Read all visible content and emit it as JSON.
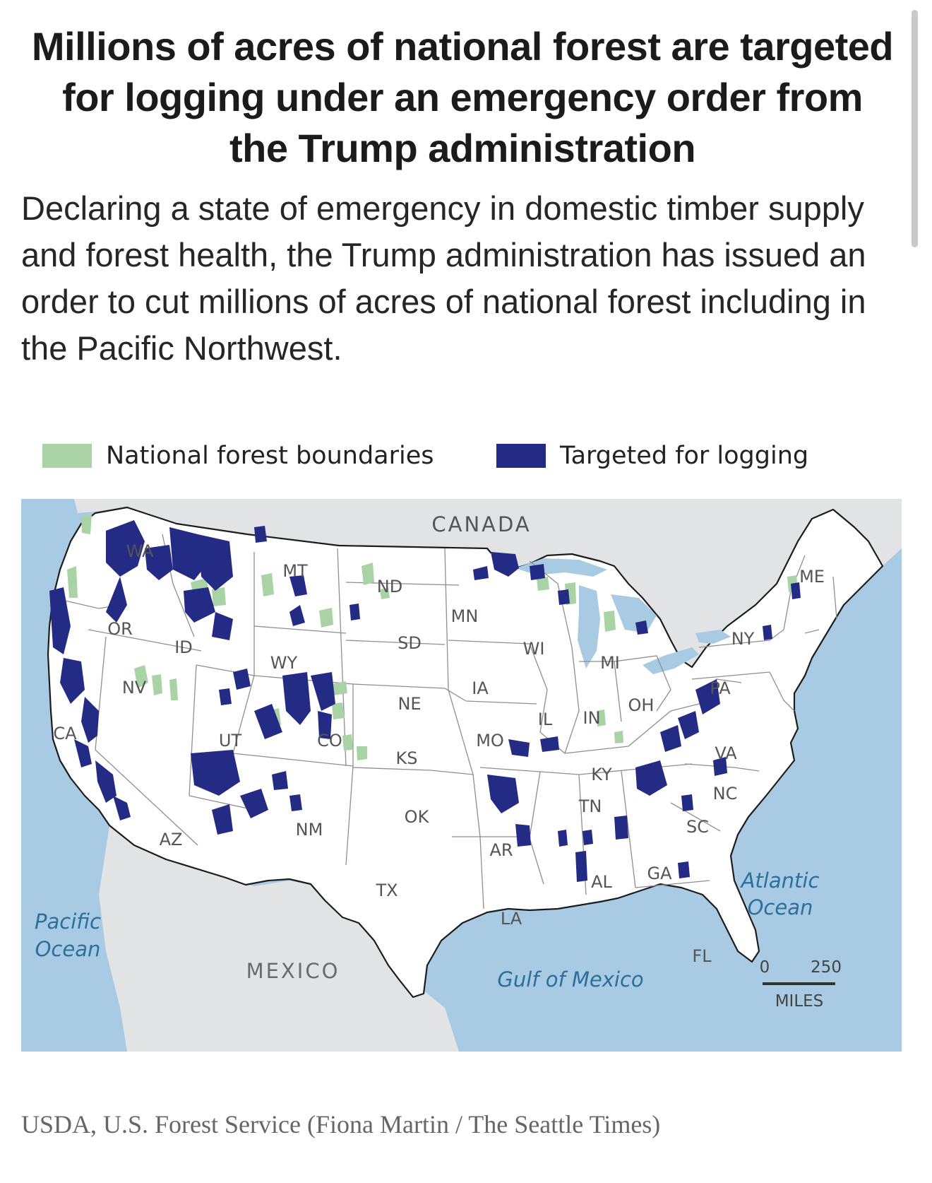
{
  "headline": "Millions of acres of national forest are targeted for logging under an emergency order from the Trump administration",
  "dek": "Declaring a state of emergency in domestic timber supply and forest health, the Trump administration has issued an order to cut millions of acres of national forest including in the Pacific Northwest.",
  "legend": {
    "boundaries_label": "National forest boundaries",
    "logging_label": "Targeted for logging"
  },
  "colors": {
    "boundaries": "#a9d3a4",
    "logging": "#232b84",
    "water": "#a8cbe3",
    "land": "#ffffff",
    "foreign_land": "#e1e3e5"
  },
  "map": {
    "country_labels": {
      "canada": "CANADA",
      "mexico": "MEXICO"
    },
    "water_labels": {
      "pacific_1": "Pacific",
      "pacific_2": "Ocean",
      "atlantic_1": "Atlantic",
      "atlantic_2": "Ocean",
      "gulf": "Gulf of Mexico"
    },
    "state_labels": [
      "WA",
      "OR",
      "CA",
      "NV",
      "ID",
      "MT",
      "WY",
      "UT",
      "AZ",
      "CO",
      "NM",
      "ND",
      "SD",
      "NE",
      "KS",
      "OK",
      "TX",
      "MN",
      "IA",
      "MO",
      "AR",
      "LA",
      "WI",
      "IL",
      "MI",
      "IN",
      "OH",
      "KY",
      "TN",
      "AL",
      "GA",
      "FL",
      "SC",
      "NC",
      "VA",
      "PA",
      "NY",
      "ME"
    ],
    "scale_bar": {
      "start": "0",
      "end": "250",
      "unit": "MILES"
    }
  },
  "credit": "USDA, U.S. Forest Service (Fiona Martin / The Seattle Times)"
}
